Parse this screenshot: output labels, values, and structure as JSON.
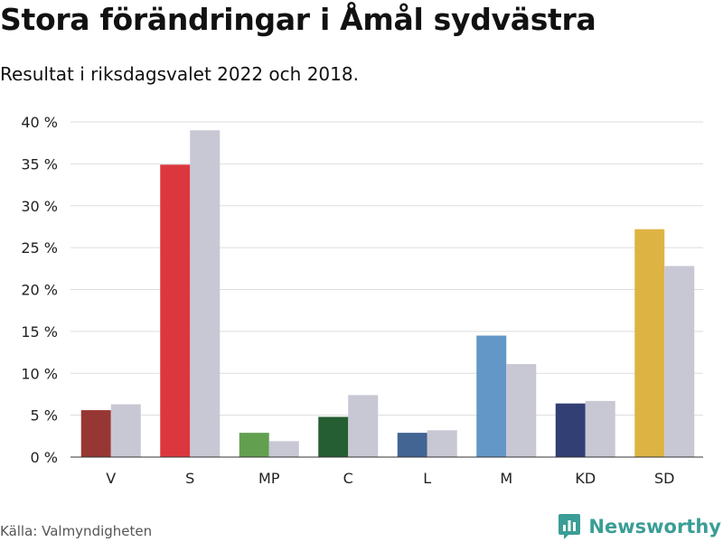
{
  "header": {
    "title": "Stora förändringar i Åmål sydvästra",
    "subtitle": "Resultat i riksdagsvalet 2022 och 2018."
  },
  "footer": {
    "source": "Källa: Valmyndigheten",
    "brand": "Newsworthy",
    "brand_icon": "bar-chart-icon",
    "brand_color": "#3a9e96"
  },
  "chart_data": {
    "type": "bar",
    "categories": [
      "V",
      "S",
      "MP",
      "C",
      "L",
      "M",
      "KD",
      "SD"
    ],
    "series": [
      {
        "values": [
          5.6,
          34.9,
          2.9,
          4.8,
          2.9,
          14.5,
          6.4,
          27.2
        ],
        "colors": [
          "#973733",
          "#dc373e",
          "#62a050",
          "#255e33",
          "#426593",
          "#6397c7",
          "#323f75",
          "#ddb443"
        ]
      },
      {
        "values": [
          6.3,
          39.0,
          1.9,
          7.4,
          3.2,
          11.1,
          6.7,
          22.8
        ],
        "color": "#c8c7d4"
      }
    ],
    "yticks": [
      "0 %",
      "5 %",
      "10 %",
      "15 %",
      "20 %",
      "25 %",
      "30 %",
      "35 %",
      "40 %"
    ],
    "ylim": [
      0,
      40
    ],
    "ytick_step": 5,
    "grid": true,
    "gridColor": "#dddddd",
    "axisColor": "#333333",
    "xlabel": "",
    "ylabel": ""
  }
}
